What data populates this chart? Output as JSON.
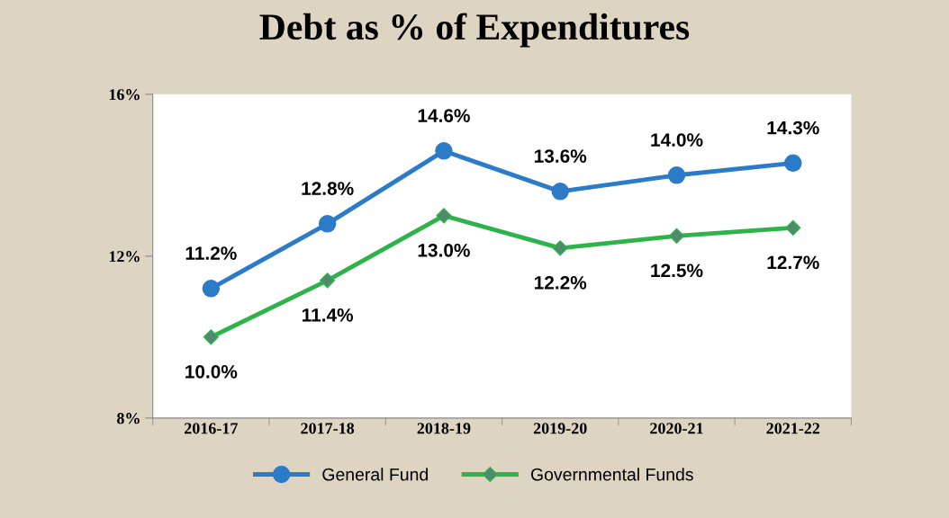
{
  "chart_data": {
    "type": "line",
    "title": "Debt as % of Expenditures",
    "categories": [
      "2016-17",
      "2017-18",
      "2018-19",
      "2019-20",
      "2020-21",
      "2021-22"
    ],
    "series": [
      {
        "name": "General Fund",
        "color": "#2b7bc9",
        "marker": "circle",
        "values": [
          11.2,
          12.8,
          14.6,
          13.6,
          14.0,
          14.3
        ],
        "value_labels": [
          "11.2%",
          "12.8%",
          "14.6%",
          "13.6%",
          "14.0%",
          "14.3%"
        ]
      },
      {
        "name": "Governmental Funds",
        "color": "#2db34a",
        "marker": "diamond",
        "values": [
          10.0,
          11.4,
          13.0,
          12.2,
          12.5,
          12.7
        ],
        "value_labels": [
          "10.0%",
          "11.4%",
          "13.0%",
          "12.2%",
          "12.5%",
          "12.7%"
        ]
      }
    ],
    "ylim": [
      8,
      16
    ],
    "yticks": [
      {
        "value": 8,
        "label": "8%"
      },
      {
        "value": 12,
        "label": "12%"
      },
      {
        "value": 16,
        "label": "16%"
      }
    ],
    "legend": "bottom",
    "grid": false,
    "line_style": "solid"
  }
}
